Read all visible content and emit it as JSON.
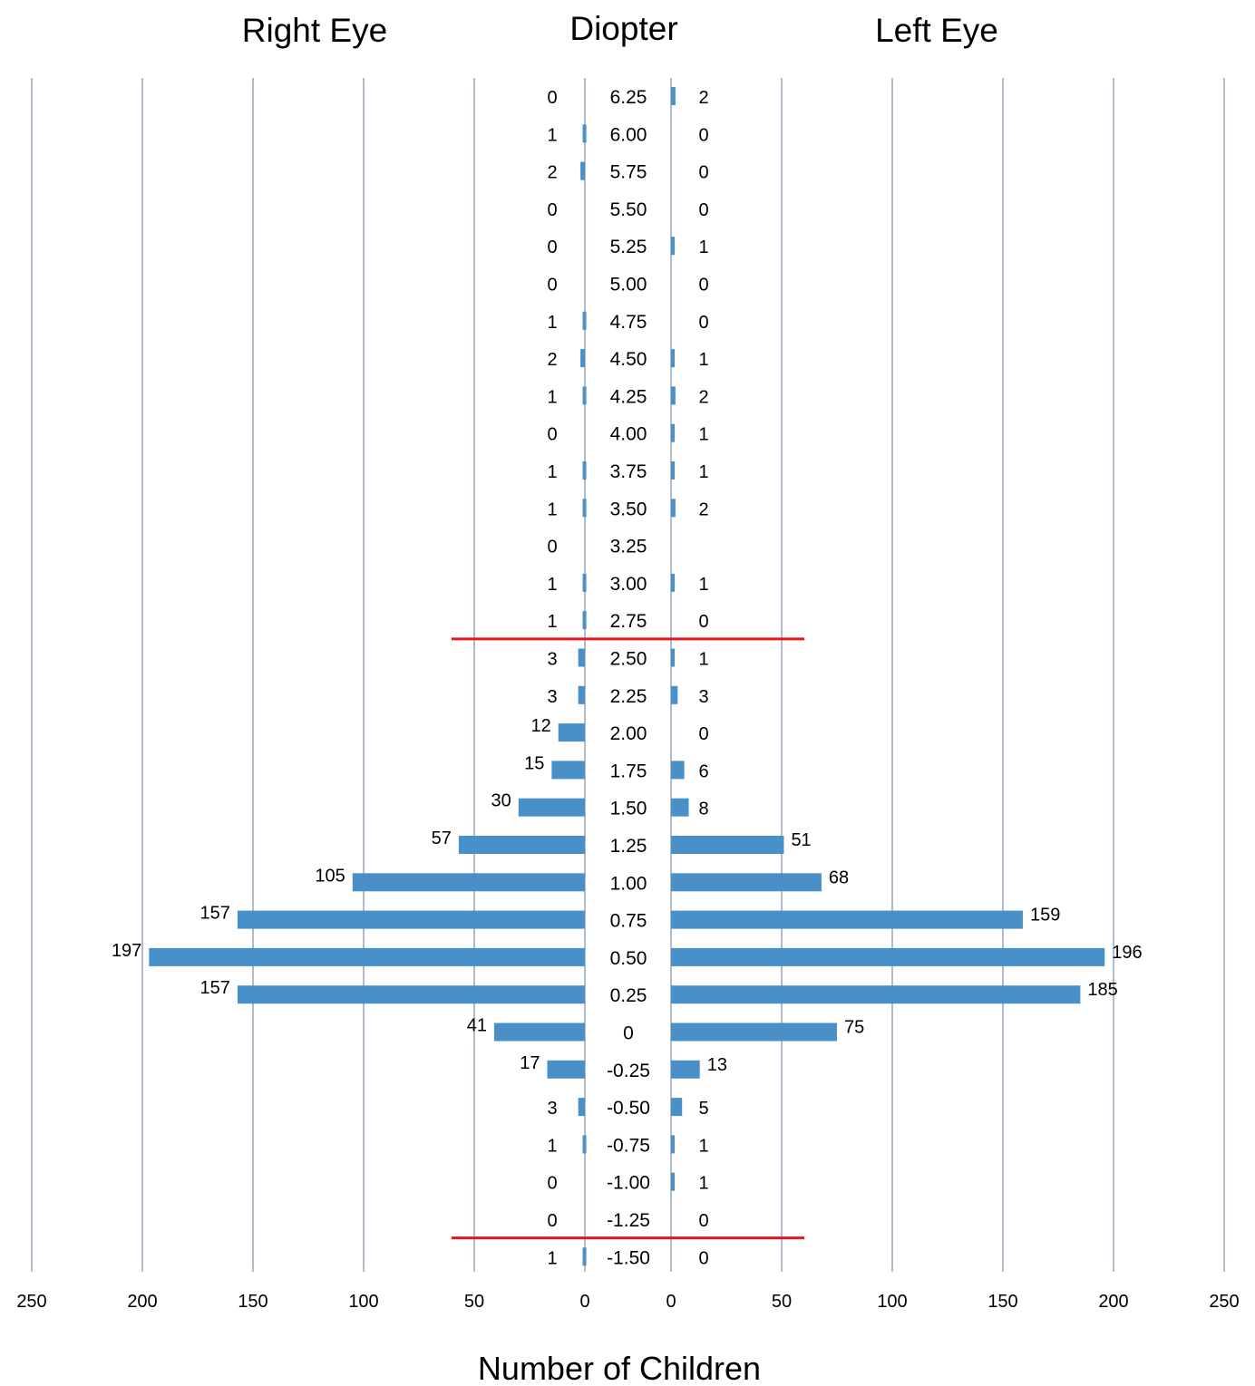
{
  "chart_data": {
    "type": "bar",
    "orientation": "horizontal",
    "layout": "back-to-back",
    "titles": {
      "left": "Right Eye",
      "center": "Diopter",
      "right": "Left Eye"
    },
    "xlabel": "Number of Children",
    "xlim": [
      0,
      250
    ],
    "xticks": [
      0,
      50,
      100,
      150,
      200,
      250
    ],
    "grid": true,
    "bar_color": "#4a90c8",
    "grid_color": "#b0bccb",
    "reference_line_color": "#e8141e",
    "categories": [
      "6.25",
      "6.00",
      "5.75",
      "5.50",
      "5.25",
      "5.00",
      "4.75",
      "4.50",
      "4.25",
      "4.00",
      "3.75",
      "3.50",
      "3.25",
      "3.00",
      "2.75",
      "2.50",
      "2.25",
      "2.00",
      "1.75",
      "1.50",
      "1.25",
      "1.00",
      "0.75",
      "0.50",
      "0.25",
      "0",
      "-0.25",
      "-0.50",
      "-0.75",
      "-1.00",
      "-1.25",
      "-1.50"
    ],
    "series": [
      {
        "name": "Right Eye",
        "side": "left",
        "values": [
          0,
          1,
          2,
          0,
          0,
          0,
          1,
          2,
          1,
          0,
          1,
          1,
          0,
          1,
          1,
          3,
          3,
          12,
          15,
          30,
          57,
          105,
          157,
          197,
          157,
          41,
          17,
          3,
          1,
          0,
          0,
          1
        ]
      },
      {
        "name": "Left Eye",
        "side": "right",
        "values": [
          2,
          0,
          0,
          0,
          1,
          0,
          0,
          1,
          2,
          1,
          1,
          2,
          null,
          1,
          0,
          1,
          3,
          0,
          6,
          8,
          51,
          68,
          159,
          196,
          185,
          75,
          13,
          5,
          1,
          1,
          0,
          0
        ]
      }
    ],
    "reference_lines_after_category": [
      "2.75",
      "-1.25"
    ]
  }
}
